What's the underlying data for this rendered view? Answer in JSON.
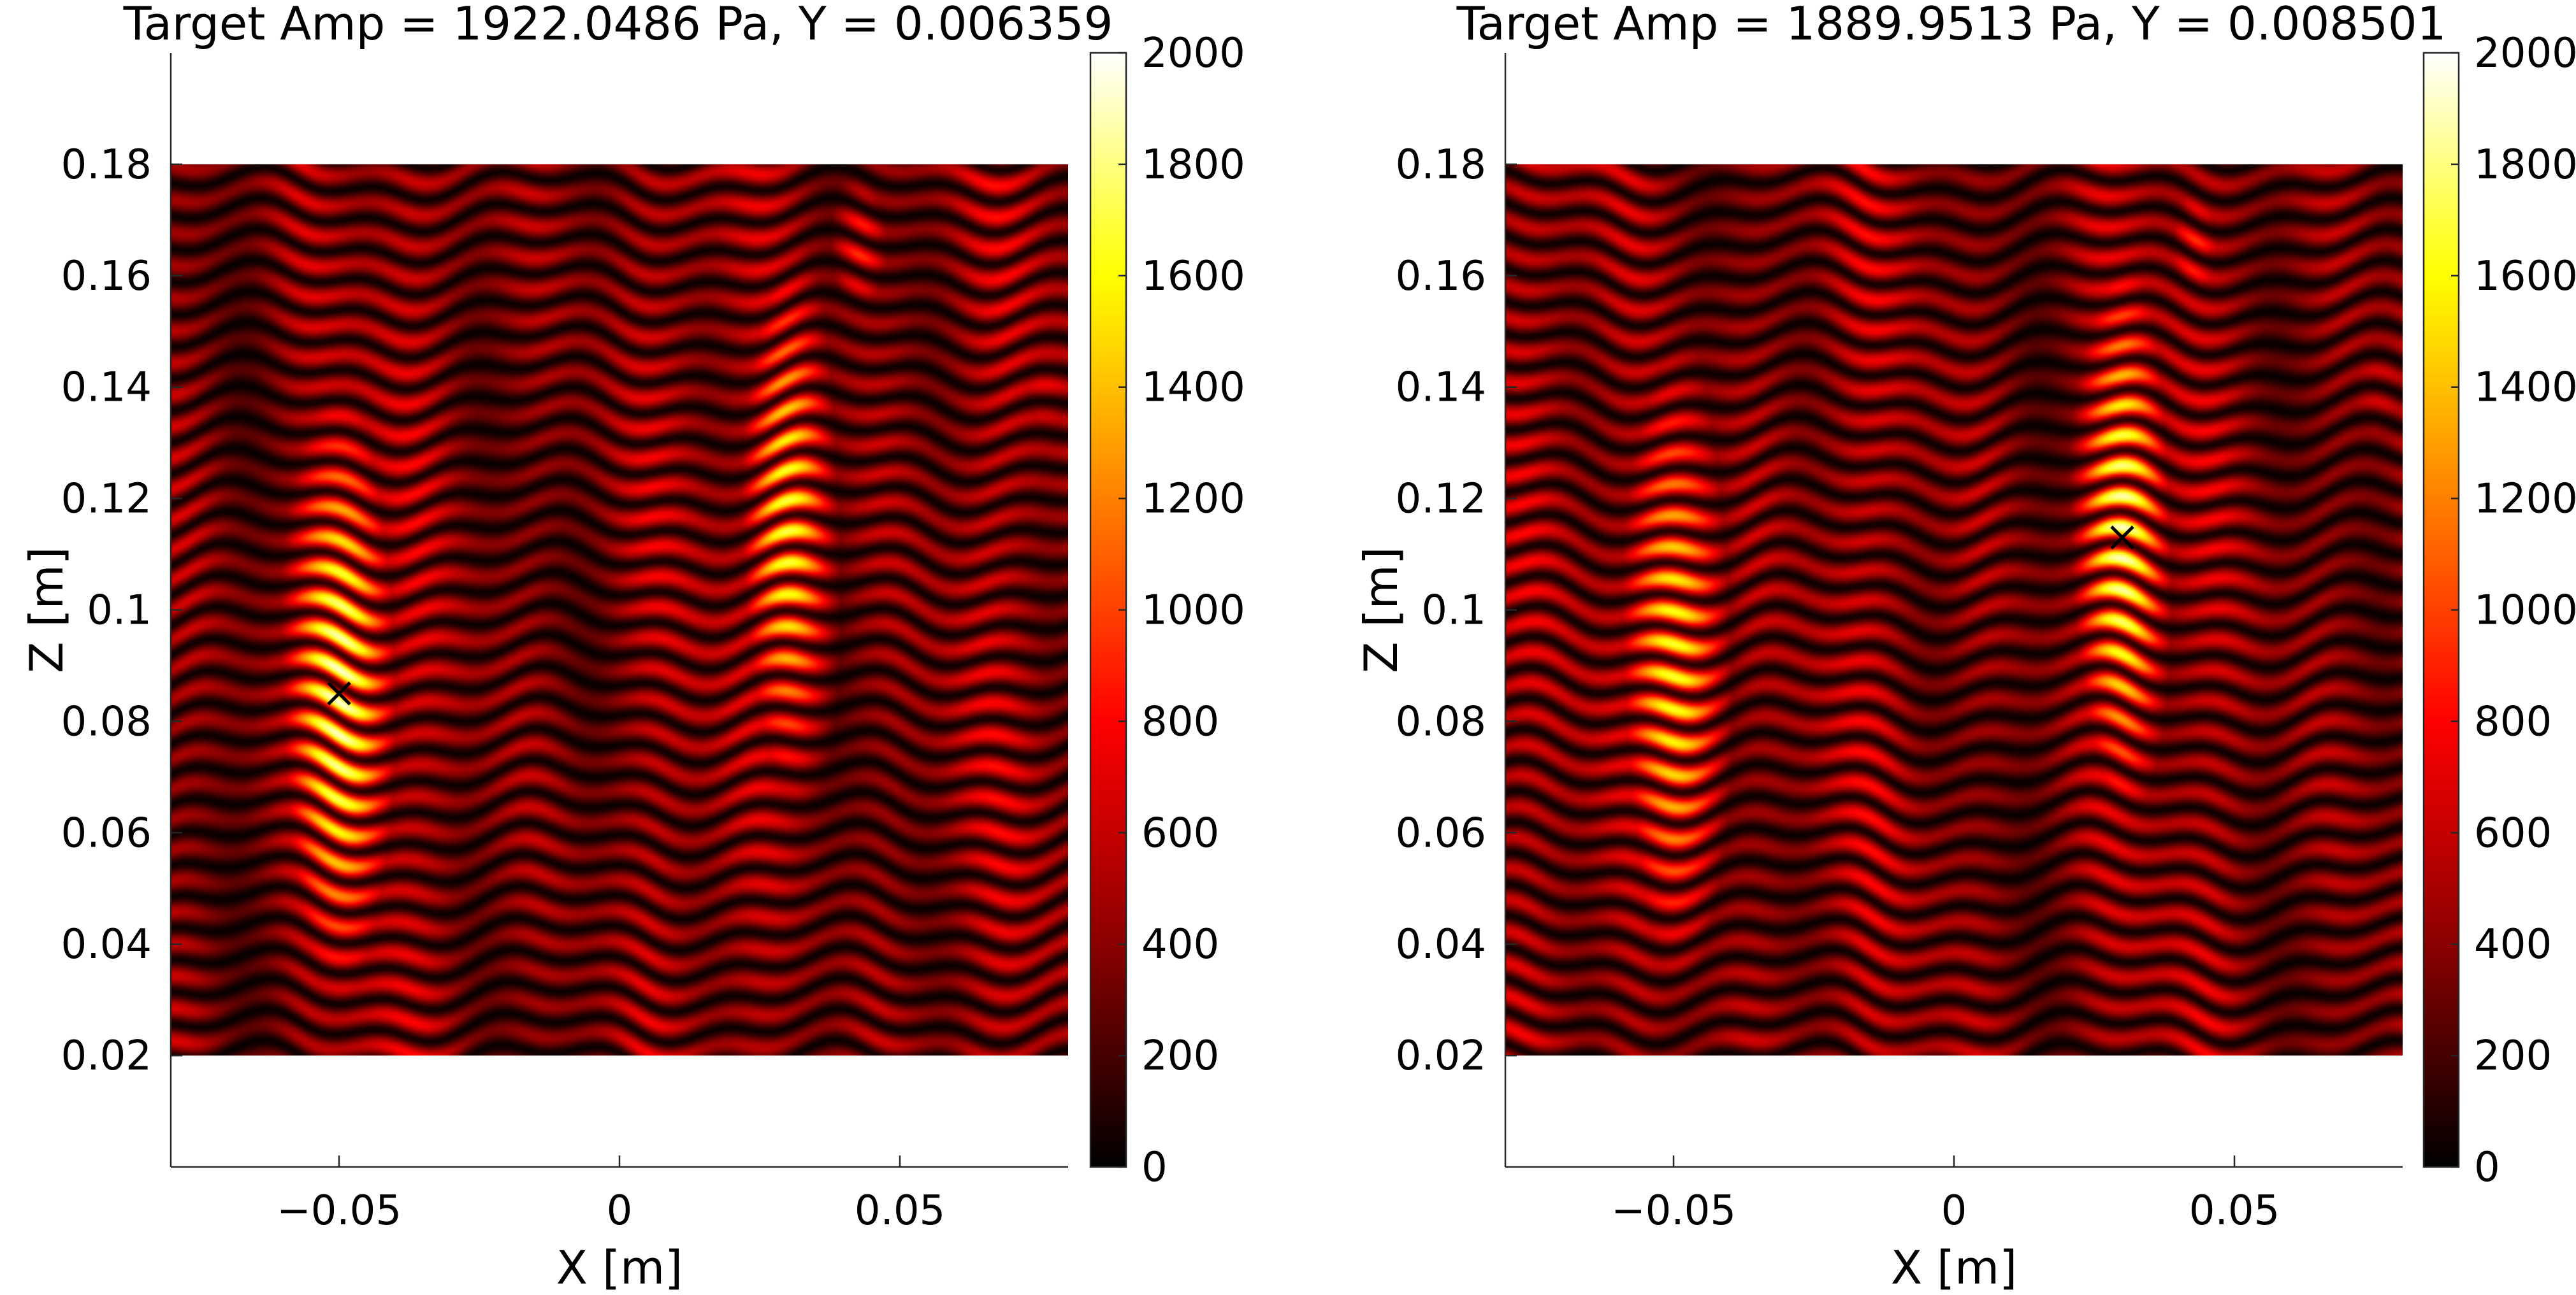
{
  "colors": {
    "colormap": [
      "#000000",
      "#8b0000",
      "#ff0000",
      "#ff8000",
      "#ffff00",
      "#ffffff"
    ],
    "marker": "#000000",
    "axes": "#262626"
  },
  "chart_data": [
    {
      "type": "heatmap",
      "title": "Target Amp = 1922.0486 Pa, Y = 0.006359",
      "xlabel": "X [m]",
      "ylabel": "Z [m]",
      "xlim": [
        -0.08,
        0.08
      ],
      "ylim": [
        0,
        0.2
      ],
      "data_extent_x": [
        -0.08,
        0.08
      ],
      "data_extent_z": [
        0.02,
        0.18
      ],
      "x_ticks": [
        -0.05,
        0,
        0.05
      ],
      "x_tick_labels": [
        "−0.05",
        "0",
        "0.05"
      ],
      "y_ticks": [
        0.02,
        0.04,
        0.06,
        0.08,
        0.1,
        0.12,
        0.14,
        0.16,
        0.18
      ],
      "y_tick_labels": [
        "0.02",
        "0.04",
        "0.06",
        "0.08",
        "0.1",
        "0.12",
        "0.14",
        "0.16",
        "0.18"
      ],
      "target": {
        "x": -0.05,
        "z": 0.085,
        "marker": "x"
      },
      "hotspots": [
        {
          "x": -0.05,
          "z": 0.085,
          "amp": 1920,
          "sx": 0.0065,
          "sz": 0.036
        },
        {
          "x": 0.03,
          "z": 0.115,
          "amp": 1650,
          "sx": 0.0055,
          "sz": 0.034
        },
        {
          "x": 0.043,
          "z": 0.165,
          "amp": 900,
          "sx": 0.004,
          "sz": 0.01
        },
        {
          "x": 0.076,
          "z": 0.14,
          "amp": 700,
          "sx": 0.006,
          "sz": 0.01
        }
      ],
      "colorbar": {
        "min": 0,
        "max": 2000,
        "ticks": [
          0,
          200,
          400,
          600,
          800,
          1000,
          1200,
          1400,
          1600,
          1800,
          2000
        ]
      },
      "grid": false
    },
    {
      "type": "heatmap",
      "title": "Target Amp = 1889.9513 Pa, Y = 0.008501",
      "xlabel": "X [m]",
      "ylabel": "Z [m]",
      "xlim": [
        -0.08,
        0.08
      ],
      "ylim": [
        0,
        0.2
      ],
      "data_extent_x": [
        -0.08,
        0.08
      ],
      "data_extent_z": [
        0.02,
        0.18
      ],
      "x_ticks": [
        -0.05,
        0,
        0.05
      ],
      "x_tick_labels": [
        "−0.05",
        "0",
        "0.05"
      ],
      "y_ticks": [
        0.02,
        0.04,
        0.06,
        0.08,
        0.1,
        0.12,
        0.14,
        0.16,
        0.18
      ],
      "y_tick_labels": [
        "0.02",
        "0.04",
        "0.06",
        "0.08",
        "0.1",
        "0.12",
        "0.14",
        "0.16",
        "0.18"
      ],
      "target": {
        "x": 0.03,
        "z": 0.113,
        "marker": "x"
      },
      "hotspots": [
        {
          "x": -0.05,
          "z": 0.09,
          "amp": 1600,
          "sx": 0.0065,
          "sz": 0.038
        },
        {
          "x": 0.03,
          "z": 0.113,
          "amp": 1890,
          "sx": 0.0055,
          "sz": 0.034
        },
        {
          "x": 0.043,
          "z": 0.165,
          "amp": 900,
          "sx": 0.004,
          "sz": 0.01
        },
        {
          "x": 0.076,
          "z": 0.14,
          "amp": 650,
          "sx": 0.006,
          "sz": 0.01
        }
      ],
      "colorbar": {
        "min": 0,
        "max": 2000,
        "ticks": [
          0,
          200,
          400,
          600,
          800,
          1000,
          1200,
          1400,
          1600,
          1800,
          2000
        ]
      },
      "grid": false
    }
  ]
}
